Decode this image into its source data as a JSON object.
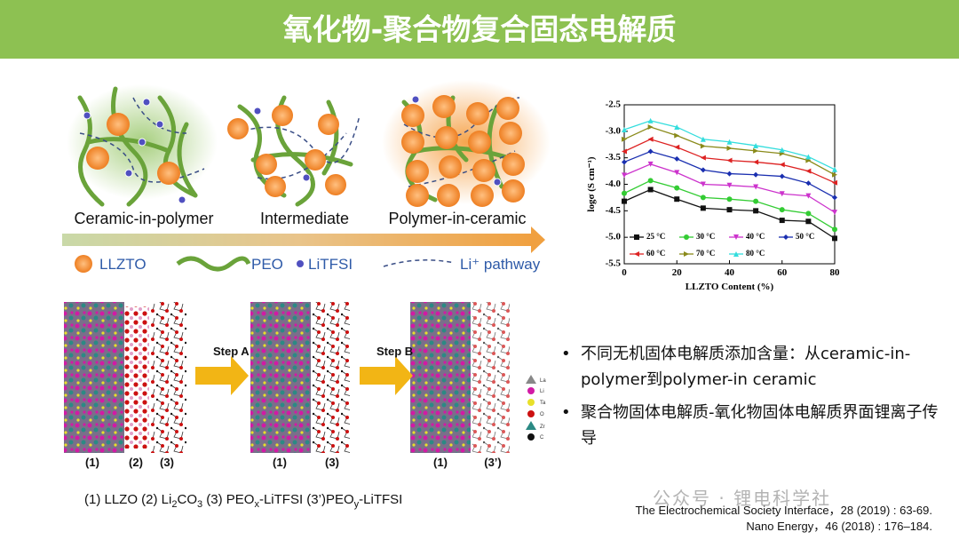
{
  "header": {
    "title": "氧化物-聚合物复合固态电解质"
  },
  "schematic": {
    "stages": [
      "Ceramic-in-polymer",
      "Intermediate",
      "Polymer-in-ceramic"
    ],
    "legend": [
      "LLZTO",
      "PEO",
      "LiTFSI",
      "Li⁺ pathway"
    ]
  },
  "structure": {
    "labels_1": [
      "(1)",
      "(2)",
      "(3)"
    ],
    "labels_2": [
      "(1)",
      "(3)"
    ],
    "labels_3": [
      "(1)",
      "(3’)"
    ],
    "steps": [
      "Step A",
      "Step B"
    ],
    "elements": [
      "La",
      "Li",
      "Ta",
      "O",
      "Zr",
      "C"
    ],
    "caption": [
      "(1) LLZO (2) Li",
      "2",
      "CO",
      "3",
      " (3) PEO",
      "x",
      "-LiTFSI (3’)PEO",
      "y",
      "-LiTFSI"
    ]
  },
  "chart_data": {
    "type": "line",
    "xlabel": "LLZTO Content (%)",
    "ylabel": "logσ (S cm⁻¹)",
    "x": [
      0,
      10,
      20,
      30,
      40,
      50,
      60,
      70,
      80
    ],
    "xlim": [
      0,
      80
    ],
    "xticks": [
      0,
      20,
      40,
      60,
      80
    ],
    "ylim": [
      -5.5,
      -2.5
    ],
    "yticks": [
      -2.5,
      {
        "value": -3,
        "label": "-3.0"
      },
      -3.5,
      {
        "value": -4,
        "label": "-4.0"
      },
      -4.5,
      {
        "value": -5,
        "label": "-5.0"
      },
      -5.5
    ],
    "series": [
      {
        "name": "25 °C",
        "color": "#111111",
        "values": [
          -4.32,
          -4.1,
          -4.28,
          -4.45,
          -4.48,
          -4.5,
          -4.68,
          -4.7,
          -5.02
        ]
      },
      {
        "name": "30 °C",
        "color": "#33cc33",
        "values": [
          -4.17,
          -3.93,
          -4.07,
          -4.25,
          -4.28,
          -4.32,
          -4.48,
          -4.55,
          -4.85
        ]
      },
      {
        "name": "40 °C",
        "color": "#cc33cc",
        "values": [
          -3.83,
          -3.62,
          -3.78,
          -4.0,
          -4.02,
          -4.05,
          -4.18,
          -4.22,
          -4.53
        ]
      },
      {
        "name": "50 °C",
        "color": "#1a2fb0",
        "values": [
          -3.58,
          -3.38,
          -3.52,
          -3.73,
          -3.8,
          -3.82,
          -3.85,
          -3.98,
          -4.25
        ]
      },
      {
        "name": "60 °C",
        "color": "#dd2222",
        "values": [
          -3.38,
          -3.15,
          -3.3,
          -3.5,
          -3.55,
          -3.58,
          -3.63,
          -3.75,
          -3.97
        ]
      },
      {
        "name": "70 °C",
        "color": "#8a8a1a",
        "values": [
          -3.15,
          -2.92,
          -3.08,
          -3.28,
          -3.32,
          -3.37,
          -3.42,
          -3.55,
          -3.82
        ]
      },
      {
        "name": "80 °C",
        "color": "#33dddd",
        "values": [
          -2.97,
          -2.8,
          -2.92,
          -3.15,
          -3.2,
          -3.27,
          -3.35,
          -3.48,
          -3.72
        ]
      }
    ]
  },
  "bullets": [
    "不同无机固体电解质添加含量：从ceramic-in-polymer到polymer-in ceramic",
    "聚合物固体电解质-氧化物固体电解质界面锂离子传导"
  ],
  "references": [
    "The Electrochemical Society Interface，28 (2019) : 63-69.",
    "Nano Energy，46 (2018) : 176–184."
  ],
  "watermark": "公众号 · 锂电科学社"
}
